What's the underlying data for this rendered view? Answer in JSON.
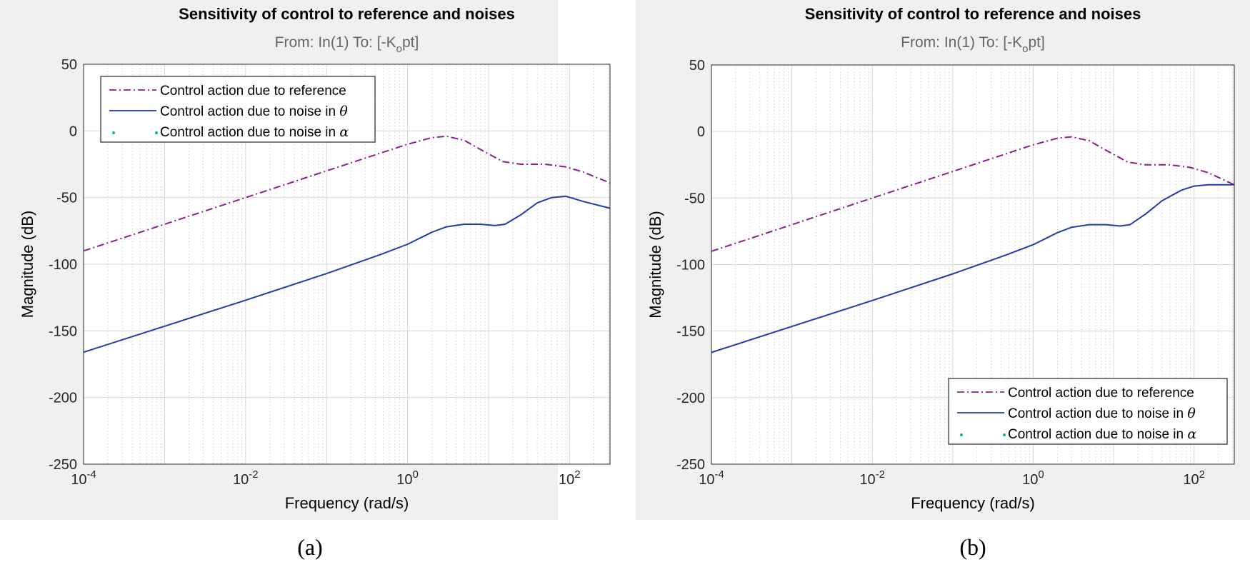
{
  "chart_data": [
    {
      "type": "line",
      "panel_label": "(a)",
      "title": "Sensitivity of control to reference and noises",
      "subtitle": "From: In(1)  To: [-K",
      "subtitle_sub": "o",
      "subtitle_end": "pt]",
      "xlabel": "Frequency  (rad/s)",
      "ylabel": "Magnitude (dB)",
      "xscale": "log",
      "xlim": [
        0.0001,
        316
      ],
      "ylim": [
        -250,
        50
      ],
      "yticks": [
        50,
        0,
        -50,
        -100,
        -150,
        -200,
        -250
      ],
      "xtick_exponents": [
        -4,
        -2,
        0,
        2
      ],
      "xtick_base": "10",
      "grid": true,
      "legend_position": "top-left",
      "legend": [
        {
          "label": "Control action due to reference",
          "style": "dash-dot",
          "color": "#8b1f8b"
        },
        {
          "label": "Control action due to noise in ",
          "symbol": "θ",
          "style": "solid",
          "color": "#1f3fa8"
        },
        {
          "label": "Control action due to noise in ",
          "symbol": "α",
          "style": "dotted",
          "color": "#00b3a4"
        }
      ],
      "series": [
        {
          "name": "Control action due to reference",
          "color": "#8b1f8b",
          "style": "dash-dot",
          "points": [
            [
              0.0001,
              -90
            ],
            [
              0.01,
              -50
            ],
            [
              0.1,
              -30
            ],
            [
              0.5,
              -16
            ],
            [
              1,
              -10
            ],
            [
              2,
              -5
            ],
            [
              3,
              -4
            ],
            [
              5,
              -7
            ],
            [
              8,
              -14
            ],
            [
              15,
              -23
            ],
            [
              25,
              -25
            ],
            [
              50,
              -25
            ],
            [
              90,
              -27
            ],
            [
              150,
              -31
            ],
            [
              316,
              -39
            ]
          ]
        },
        {
          "name": "Control action due to noise in θ",
          "color": "#1f3fa8",
          "style": "solid",
          "points": [
            [
              0.0001,
              -166
            ],
            [
              0.01,
              -127
            ],
            [
              0.1,
              -107
            ],
            [
              0.5,
              -92
            ],
            [
              1,
              -85
            ],
            [
              2,
              -76
            ],
            [
              3,
              -72
            ],
            [
              5,
              -70
            ],
            [
              8,
              -70
            ],
            [
              12,
              -71
            ],
            [
              16,
              -70
            ],
            [
              25,
              -63
            ],
            [
              40,
              -54
            ],
            [
              60,
              -50
            ],
            [
              90,
              -49
            ],
            [
              150,
              -53
            ],
            [
              316,
              -58
            ]
          ]
        }
      ]
    },
    {
      "type": "line",
      "panel_label": "(b)",
      "title": "Sensitivity of control to reference and noises",
      "subtitle": "From: In(1)  To: [-K",
      "subtitle_sub": "o",
      "subtitle_end": "pt]",
      "xlabel": "Frequency  (rad/s)",
      "ylabel": "Magnitude (dB)",
      "xscale": "log",
      "xlim": [
        0.0001,
        316
      ],
      "ylim": [
        -250,
        50
      ],
      "yticks": [
        50,
        0,
        -50,
        -100,
        -150,
        -200,
        -250
      ],
      "xtick_exponents": [
        -4,
        -2,
        0,
        2
      ],
      "xtick_base": "10",
      "grid": true,
      "legend_position": "bottom-right",
      "legend": [
        {
          "label": "Control action due to reference",
          "style": "dash-dot",
          "color": "#8b1f8b"
        },
        {
          "label": "Control action due to noise in ",
          "symbol": "θ",
          "style": "solid",
          "color": "#1f3fa8"
        },
        {
          "label": "Control action due to noise in ",
          "symbol": "α",
          "style": "dotted",
          "color": "#00b3a4"
        }
      ],
      "series": [
        {
          "name": "Control action due to reference",
          "color": "#8b1f8b",
          "style": "dash-dot",
          "points": [
            [
              0.0001,
              -90
            ],
            [
              0.01,
              -50
            ],
            [
              0.1,
              -30
            ],
            [
              0.5,
              -16
            ],
            [
              1,
              -10
            ],
            [
              2,
              -5
            ],
            [
              3,
              -4
            ],
            [
              5,
              -7
            ],
            [
              8,
              -14
            ],
            [
              15,
              -23
            ],
            [
              25,
              -25
            ],
            [
              50,
              -25
            ],
            [
              90,
              -27
            ],
            [
              150,
              -31
            ],
            [
              316,
              -40
            ]
          ]
        },
        {
          "name": "Control action due to noise in θ",
          "color": "#1f3fa8",
          "style": "solid",
          "points": [
            [
              0.0001,
              -166
            ],
            [
              0.01,
              -127
            ],
            [
              0.1,
              -107
            ],
            [
              0.5,
              -92
            ],
            [
              1,
              -85
            ],
            [
              2,
              -76
            ],
            [
              3,
              -72
            ],
            [
              5,
              -70
            ],
            [
              8,
              -70
            ],
            [
              12,
              -71
            ],
            [
              16,
              -70
            ],
            [
              25,
              -62
            ],
            [
              40,
              -52
            ],
            [
              70,
              -44
            ],
            [
              100,
              -41
            ],
            [
              150,
              -40
            ],
            [
              316,
              -40
            ]
          ]
        }
      ]
    }
  ]
}
